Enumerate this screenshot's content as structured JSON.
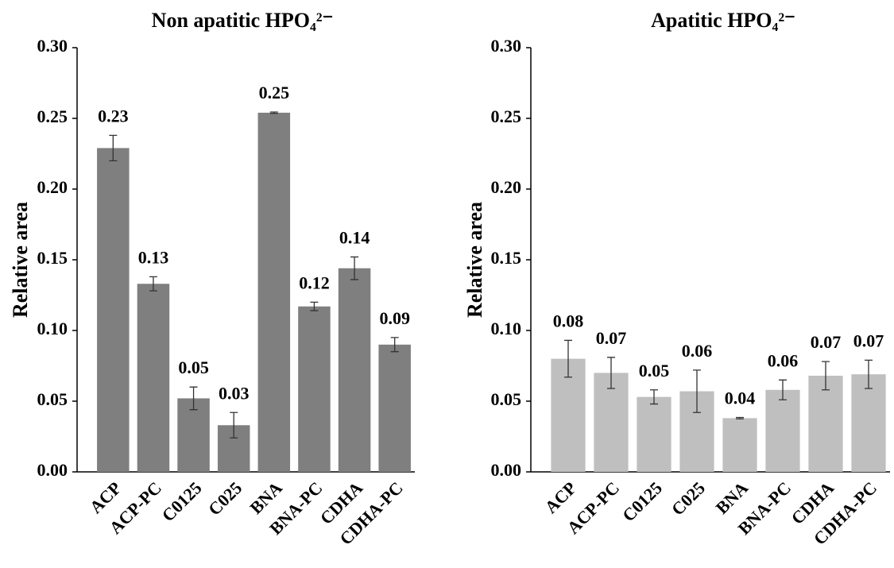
{
  "chart_data": [
    {
      "type": "bar",
      "title": "Non apatitic HPO₄²⁻",
      "y_label": "Relative  area",
      "categories": [
        "ACP",
        "ACP-PC",
        "C0125",
        "C025",
        "BNA",
        "BNA-PC",
        "CDHA",
        "CDHA-PC"
      ],
      "values": [
        0.229,
        0.133,
        0.052,
        0.033,
        0.254,
        0.117,
        0.144,
        0.09
      ],
      "errors": [
        0.009,
        0.005,
        0.008,
        0.009,
        0.0005,
        0.003,
        0.008,
        0.005
      ],
      "value_labels": [
        "0.23",
        "0.13",
        "0.05",
        "0.03",
        "0.25",
        "0.12",
        "0.14",
        "0.09"
      ],
      "color": "#7f7f7f",
      "ylim": [
        0,
        0.3
      ],
      "yticks": [
        {
          "value": 0,
          "label": "0.00"
        },
        0.05,
        {
          "value": 0.1,
          "label": "0.10"
        },
        0.15,
        {
          "value": 0.2,
          "label": "0.20"
        },
        0.25,
        {
          "value": 0.3,
          "label": "0.30"
        }
      ]
    },
    {
      "type": "bar",
      "title": "Apatitic HPO₄²⁻",
      "y_label": "Relative  area",
      "categories": [
        "ACP",
        "ACP-PC",
        "C0125",
        "C025",
        "BNA",
        "BNA-PC",
        "CDHA",
        "CDHA-PC"
      ],
      "values": [
        0.08,
        0.07,
        0.053,
        0.057,
        0.038,
        0.058,
        0.068,
        0.069
      ],
      "errors": [
        0.013,
        0.011,
        0.005,
        0.015,
        0.0005,
        0.007,
        0.01,
        0.01
      ],
      "value_labels": [
        "0.08",
        "0.07",
        "0.05",
        "0.06",
        "0.04",
        "0.06",
        "0.07",
        "0.07"
      ],
      "color": "#bfbfbf",
      "ylim": [
        0,
        0.3
      ],
      "yticks": [
        {
          "value": 0,
          "label": "0.00"
        },
        0.05,
        {
          "value": 0.1,
          "label": "0.10"
        },
        0.15,
        {
          "value": 0.2,
          "label": "0.20"
        },
        0.25,
        {
          "value": 0.3,
          "label": "0.30"
        }
      ]
    }
  ]
}
